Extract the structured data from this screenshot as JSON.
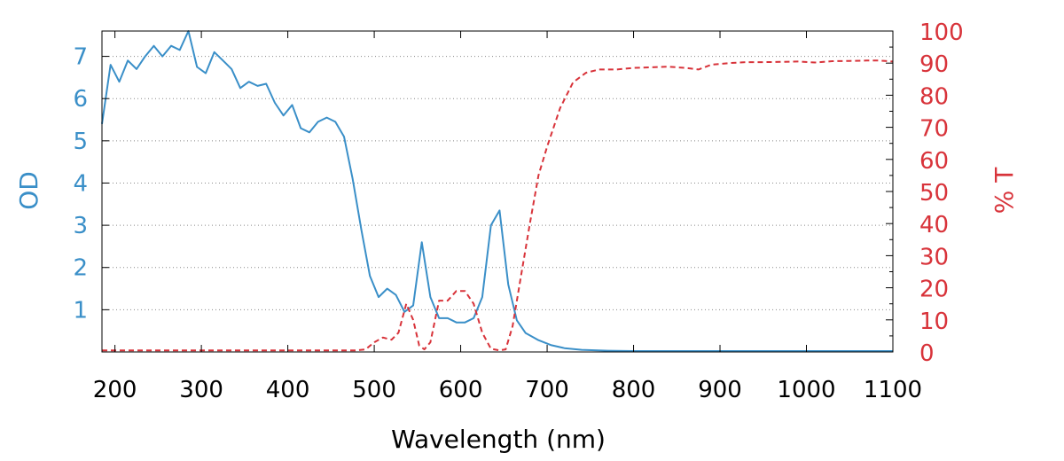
{
  "chart_data": {
    "type": "line",
    "title": "",
    "xlabel": "Wavelength (nm)",
    "ylabel_left": "OD",
    "ylabel_right": "% T",
    "xlim": [
      185,
      1100
    ],
    "ylim_left": [
      0,
      7.6
    ],
    "ylim_right": [
      0,
      100
    ],
    "grid": "horizontal-dotted",
    "x_ticks": [
      "200",
      "300",
      "400",
      "500",
      "600",
      "700",
      "800",
      "900",
      "1000",
      "1100"
    ],
    "y_left_ticks": [
      "1",
      "2",
      "3",
      "4",
      "5",
      "6",
      "7"
    ],
    "y_right_ticks": [
      "0",
      "10",
      "20",
      "30",
      "40",
      "50",
      "60",
      "70",
      "80",
      "90",
      "100"
    ],
    "colors": {
      "od": "#3a8fc8",
      "transmission": "#d8333a",
      "axes": "#000000",
      "grid": "#888888"
    },
    "series": [
      {
        "axis": "left",
        "style": "solid",
        "points": [
          [
            185,
            5.4
          ],
          [
            195,
            6.8
          ],
          [
            205,
            6.4
          ],
          [
            215,
            6.9
          ],
          [
            225,
            6.7
          ],
          [
            235,
            7.0
          ],
          [
            245,
            7.25
          ],
          [
            255,
            7.0
          ],
          [
            265,
            7.25
          ],
          [
            275,
            7.15
          ],
          [
            285,
            7.6
          ],
          [
            295,
            6.75
          ],
          [
            305,
            6.6
          ],
          [
            315,
            7.1
          ],
          [
            325,
            6.9
          ],
          [
            335,
            6.7
          ],
          [
            345,
            6.25
          ],
          [
            355,
            6.4
          ],
          [
            365,
            6.3
          ],
          [
            375,
            6.35
          ],
          [
            385,
            5.9
          ],
          [
            395,
            5.6
          ],
          [
            405,
            5.85
          ],
          [
            415,
            5.3
          ],
          [
            425,
            5.2
          ],
          [
            435,
            5.45
          ],
          [
            445,
            5.55
          ],
          [
            455,
            5.45
          ],
          [
            465,
            5.1
          ],
          [
            475,
            4.1
          ],
          [
            485,
            2.9
          ],
          [
            495,
            1.8
          ],
          [
            505,
            1.3
          ],
          [
            515,
            1.5
          ],
          [
            525,
            1.35
          ],
          [
            535,
            0.95
          ],
          [
            545,
            1.1
          ],
          [
            555,
            2.6
          ],
          [
            565,
            1.3
          ],
          [
            575,
            0.8
          ],
          [
            585,
            0.8
          ],
          [
            595,
            0.7
          ],
          [
            605,
            0.7
          ],
          [
            615,
            0.8
          ],
          [
            625,
            1.3
          ],
          [
            635,
            3.0
          ],
          [
            645,
            3.35
          ],
          [
            655,
            1.6
          ],
          [
            665,
            0.75
          ],
          [
            675,
            0.45
          ],
          [
            690,
            0.28
          ],
          [
            705,
            0.16
          ],
          [
            720,
            0.09
          ],
          [
            740,
            0.05
          ],
          [
            770,
            0.03
          ],
          [
            800,
            0.02
          ],
          [
            900,
            0.02
          ],
          [
            1000,
            0.02
          ],
          [
            1100,
            0.02
          ]
        ]
      },
      {
        "axis": "right",
        "style": "dashed",
        "points": [
          [
            185,
            0.5
          ],
          [
            300,
            0.5
          ],
          [
            400,
            0.5
          ],
          [
            480,
            0.5
          ],
          [
            490,
            0.8
          ],
          [
            500,
            3
          ],
          [
            510,
            4.5
          ],
          [
            520,
            3.8
          ],
          [
            528,
            6
          ],
          [
            537,
            15
          ],
          [
            545,
            10
          ],
          [
            552,
            2
          ],
          [
            558,
            0.8
          ],
          [
            565,
            3
          ],
          [
            575,
            16
          ],
          [
            585,
            16
          ],
          [
            595,
            19
          ],
          [
            605,
            19
          ],
          [
            615,
            15
          ],
          [
            625,
            6
          ],
          [
            635,
            1
          ],
          [
            645,
            0.5
          ],
          [
            652,
            0.8
          ],
          [
            660,
            8
          ],
          [
            670,
            24
          ],
          [
            680,
            40
          ],
          [
            690,
            55
          ],
          [
            700,
            64
          ],
          [
            715,
            76
          ],
          [
            730,
            84
          ],
          [
            745,
            87
          ],
          [
            760,
            88
          ],
          [
            780,
            88
          ],
          [
            800,
            88.5
          ],
          [
            820,
            88.7
          ],
          [
            840,
            88.9
          ],
          [
            860,
            88.5
          ],
          [
            875,
            88
          ],
          [
            890,
            89.5
          ],
          [
            910,
            90
          ],
          [
            930,
            90.3
          ],
          [
            950,
            90.3
          ],
          [
            970,
            90.4
          ],
          [
            990,
            90.5
          ],
          [
            1010,
            90.2
          ],
          [
            1030,
            90.6
          ],
          [
            1050,
            90.7
          ],
          [
            1070,
            90.8
          ],
          [
            1085,
            90.8
          ],
          [
            1100,
            90.5
          ]
        ]
      }
    ]
  }
}
